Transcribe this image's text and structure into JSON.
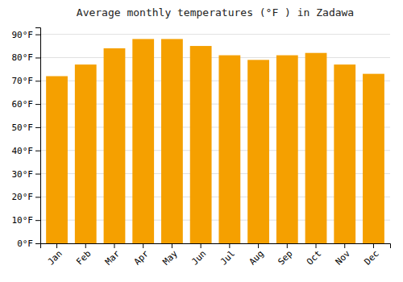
{
  "chart_data": {
    "type": "bar",
    "title": "Average monthly temperatures (°F ) in Zadawa",
    "categories": [
      "Jan",
      "Feb",
      "Mar",
      "Apr",
      "May",
      "Jun",
      "Jul",
      "Aug",
      "Sep",
      "Oct",
      "Nov",
      "Dec"
    ],
    "values": [
      72,
      77,
      84,
      88,
      88,
      85,
      81,
      79,
      81,
      82,
      77,
      73
    ],
    "color": "#F5A000",
    "ylim": [
      0,
      93
    ],
    "yticks": [
      {
        "value": 0,
        "label": "0°F"
      },
      {
        "value": 10,
        "label": "10°F"
      },
      {
        "value": 20,
        "label": "20°F"
      },
      {
        "value": 30,
        "label": "30°F"
      },
      {
        "value": 40,
        "label": "40°F"
      },
      {
        "value": 50,
        "label": "50°F"
      },
      {
        "value": 60,
        "label": "60°F"
      },
      {
        "value": 70,
        "label": "70°F"
      },
      {
        "value": 80,
        "label": "80°F"
      },
      {
        "value": 90,
        "label": "90°F"
      }
    ],
    "grid": true
  }
}
